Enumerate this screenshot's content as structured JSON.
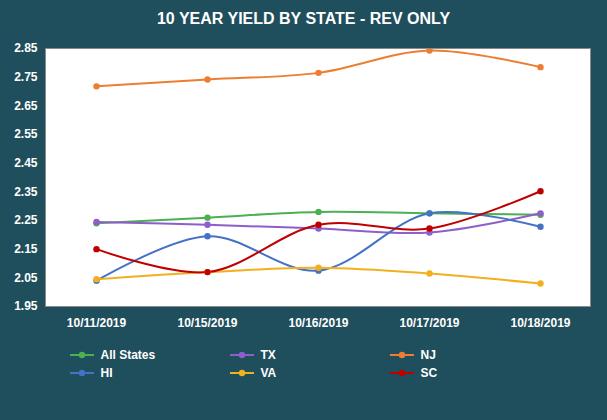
{
  "chart_data": {
    "type": "line",
    "title": "10 YEAR YIELD BY STATE - REV ONLY",
    "categories": [
      "10/11/2019",
      "10/15/2019",
      "10/16/2019",
      "10/17/2019",
      "10/18/2019"
    ],
    "series": [
      {
        "name": "All States",
        "color": "#4caf50",
        "values": [
          2.24,
          2.26,
          2.28,
          2.275,
          2.27
        ]
      },
      {
        "name": "TX",
        "color": "#8e5ecb",
        "values": [
          2.245,
          2.235,
          2.222,
          2.208,
          2.275
        ]
      },
      {
        "name": "NJ",
        "color": "#ed7d31",
        "values": [
          2.718,
          2.742,
          2.765,
          2.843,
          2.785
        ]
      },
      {
        "name": "HI",
        "color": "#4472c4",
        "values": [
          2.04,
          2.195,
          2.075,
          2.275,
          2.228
        ]
      },
      {
        "name": "VA",
        "color": "#f2b01e",
        "values": [
          2.045,
          2.07,
          2.085,
          2.065,
          2.03
        ]
      },
      {
        "name": "SC",
        "color": "#c00000",
        "values": [
          2.15,
          2.07,
          2.235,
          2.222,
          2.352
        ]
      }
    ],
    "ylim": [
      1.95,
      2.85
    ],
    "yticks": [
      1.95,
      2.05,
      2.15,
      2.25,
      2.35,
      2.45,
      2.55,
      2.65,
      2.75,
      2.85
    ],
    "grid": false,
    "legend": "bottom",
    "marker": "circle",
    "line_style": "smooth"
  }
}
